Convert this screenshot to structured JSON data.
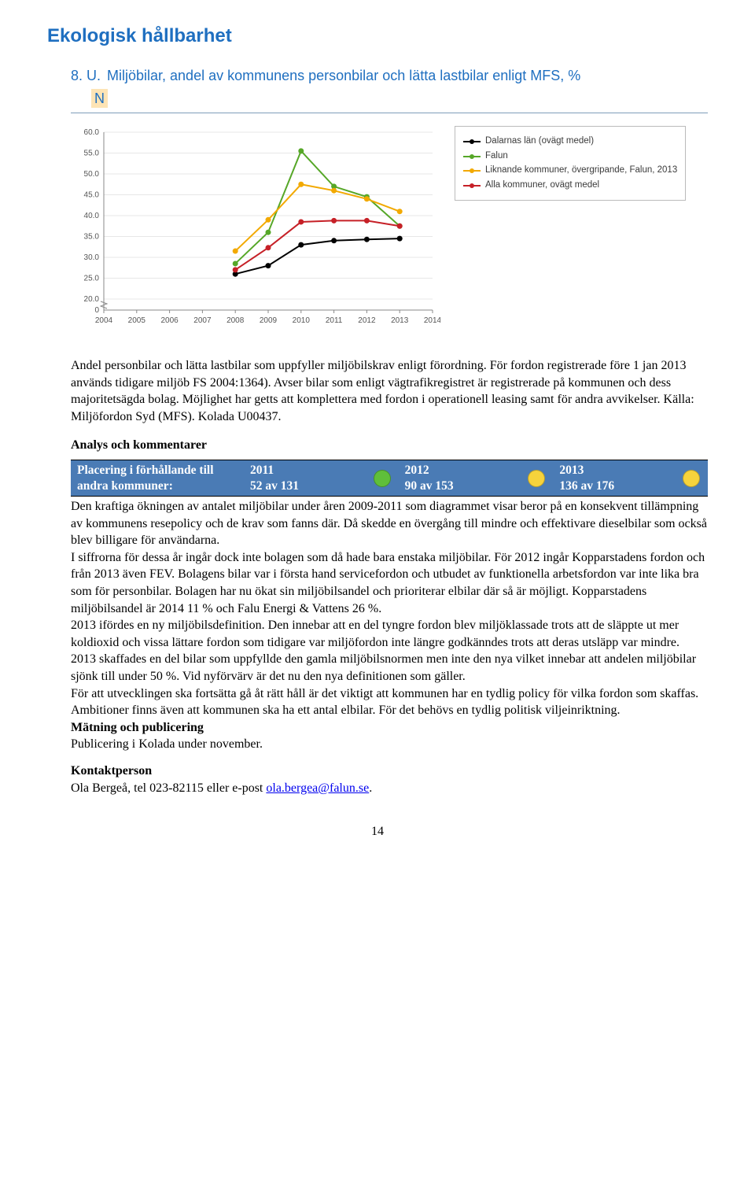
{
  "heading": "Ekologisk hållbarhet",
  "subheading_num": "8. U.",
  "subheading_text": "Miljöbilar, andel av kommunens personbilar och lätta lastbilar enligt MFS, %",
  "n_badge": "N",
  "chart": {
    "type": "line",
    "xlim": [
      2004,
      2014
    ],
    "ylim": [
      20,
      60
    ],
    "ytick_step": 5,
    "y_break_to_zero": true,
    "xticks": [
      2004,
      2005,
      2006,
      2007,
      2008,
      2009,
      2010,
      2011,
      2012,
      2013,
      2014
    ],
    "yticks": [
      20,
      25,
      30,
      35,
      40,
      45,
      50,
      55,
      60
    ],
    "yticklabels": [
      "20.0",
      "25.0",
      "30.0",
      "35.0",
      "40.0",
      "45.0",
      "50.0",
      "55.0",
      "60.0"
    ],
    "grid_color": "#e7e7e7",
    "background_color": "#ffffff",
    "axis_color": "#888888",
    "label_fontsize": 10,
    "series": [
      {
        "name": "Dalarnas län (ovägt medel)",
        "color": "#000000",
        "marker": "circle",
        "line_width": 2,
        "points": [
          [
            2008,
            26
          ],
          [
            2009,
            28
          ],
          [
            2010,
            33
          ],
          [
            2011,
            34
          ],
          [
            2012,
            34.3
          ],
          [
            2013,
            34.5
          ]
        ]
      },
      {
        "name": "Falun",
        "color": "#56a728",
        "marker": "circle",
        "line_width": 2,
        "points": [
          [
            2008,
            28.5
          ],
          [
            2009,
            36
          ],
          [
            2010,
            55.5
          ],
          [
            2011,
            47
          ],
          [
            2012,
            44.5
          ],
          [
            2013,
            37.5
          ]
        ]
      },
      {
        "name": "Liknande kommuner, övergripande, Falun, 2013",
        "color": "#f2a900",
        "marker": "circle",
        "line_width": 2,
        "points": [
          [
            2008,
            31.5
          ],
          [
            2009,
            39
          ],
          [
            2010,
            47.5
          ],
          [
            2011,
            46
          ],
          [
            2012,
            44
          ],
          [
            2013,
            41
          ]
        ]
      },
      {
        "name": "Alla kommuner, ovägt medel",
        "color": "#c62027",
        "marker": "circle",
        "line_width": 2,
        "points": [
          [
            2008,
            27
          ],
          [
            2009,
            32.3
          ],
          [
            2010,
            38.5
          ],
          [
            2011,
            38.8
          ],
          [
            2012,
            38.8
          ],
          [
            2013,
            37.5
          ]
        ]
      }
    ]
  },
  "description": "Andel personbilar och lätta lastbilar som uppfyller miljöbilskrav enligt förordning. För fordon registrerade före 1 jan 2013 används tidigare miljöb FS 2004:1364). Avser bilar som enligt vägtrafikregistret är registrerade på kommunen och dess majoritetsägda bolag. Möjlighet har getts att komplettera med fordon i operationell leasing samt för andra avvikelser. Källa: Miljöfordon Syd (MFS). Kolada U00437.",
  "analysis_heading": "Analys och kommentarer",
  "placing": {
    "label_l1": "Placering i förhållande till",
    "label_l2": "andra kommuner:",
    "cols": [
      {
        "year": "2011",
        "rank": "52 av 131",
        "circle": "#5fbf3a"
      },
      {
        "year": "2012",
        "rank": "90 av 153",
        "circle": "#f6d33c"
      },
      {
        "year": "2013",
        "rank": "136 av 176",
        "circle": "#f6d33c"
      }
    ],
    "bg": "#4a7bb5"
  },
  "body_p1": "Den kraftiga ökningen av antalet miljöbilar under åren 2009-2011 som diagrammet visar beror på en konsekvent tillämpning av kommunens resepolicy och de krav som fanns där. Då skedde en övergång till mindre och effektivare dieselbilar som också blev billigare för användarna.",
  "body_p2": "I siffrorna för dessa år ingår dock inte bolagen som då hade bara enstaka miljöbilar. För 2012 ingår Kopparstadens fordon och från 2013 även FEV. Bolagens bilar var i första hand servicefordon och utbudet av funktionella arbetsfordon var inte lika bra som för personbilar. Bolagen har nu ökat sin miljöbilsandel och prioriterar elbilar där så är möjligt. Kopparstadens miljöbilsandel är 2014 11 % och Falu Energi & Vattens 26 %.",
  "body_p3": "2013 ifördes en ny miljöbilsdefinition. Den innebar att en del tyngre fordon blev miljöklassade trots att de släppte ut mer koldioxid och vissa lättare fordon som tidigare var miljöfordon inte längre godkänndes trots att deras utsläpp var mindre. 2013 skaffades en del bilar som uppfyllde den gamla miljöbilsnormen men inte den nya vilket innebar att andelen miljöbilar sjönk till under 50 %. Vid nyförvärv är det nu den nya definitionen som gäller.",
  "body_p4": "För att utvecklingen ska fortsätta gå åt rätt håll är det viktigt att kommunen har en tydlig policy för vilka fordon som skaffas. Ambitioner finns även att kommunen ska ha ett antal elbilar. För det behövs en tydlig politisk viljeinriktning.",
  "measure_heading": "Mätning och publicering",
  "measure_text": "Publicering i Kolada under november.",
  "contact_heading": "Kontaktperson",
  "contact_text_prefix": "Ola Bergeå, tel 023-82115 eller e-post ",
  "contact_email": "ola.bergea@falun.se",
  "page_number": "14"
}
